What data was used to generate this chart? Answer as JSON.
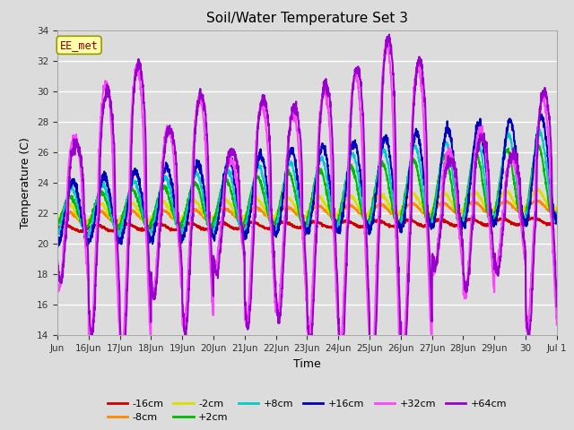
{
  "title": "Soil/Water Temperature Set 3",
  "xlabel": "Time",
  "ylabel": "Temperature (C)",
  "ylim": [
    14,
    34
  ],
  "yticks": [
    14,
    16,
    18,
    20,
    22,
    24,
    26,
    28,
    30,
    32,
    34
  ],
  "background_color": "#dcdcdc",
  "plot_bg_color": "#dcdcdc",
  "grid_color": "#ffffff",
  "watermark": "EE_met",
  "series": {
    "-16cm": {
      "color": "#cc0000",
      "lw": 1.5
    },
    "-8cm": {
      "color": "#ff8800",
      "lw": 1.5
    },
    "-2cm": {
      "color": "#dddd00",
      "lw": 1.5
    },
    "+2cm": {
      "color": "#00bb00",
      "lw": 1.5
    },
    "+8cm": {
      "color": "#00cccc",
      "lw": 1.5
    },
    "+16cm": {
      "color": "#0000bb",
      "lw": 1.5
    },
    "+32cm": {
      "color": "#ff44ff",
      "lw": 1.5
    },
    "+64cm": {
      "color": "#9900cc",
      "lw": 1.5
    }
  },
  "x_tick_labels": [
    "Jun",
    "16Jun",
    "17Jun",
    "18Jun",
    "19Jun",
    "20Jun",
    "21Jun",
    "22Jun",
    "23Jun",
    "24Jun",
    "25Jun",
    "26Jun",
    "27Jun",
    "28Jun",
    "29Jun",
    "30",
    "Jul 1"
  ],
  "num_days": 16,
  "points_per_day": 144
}
